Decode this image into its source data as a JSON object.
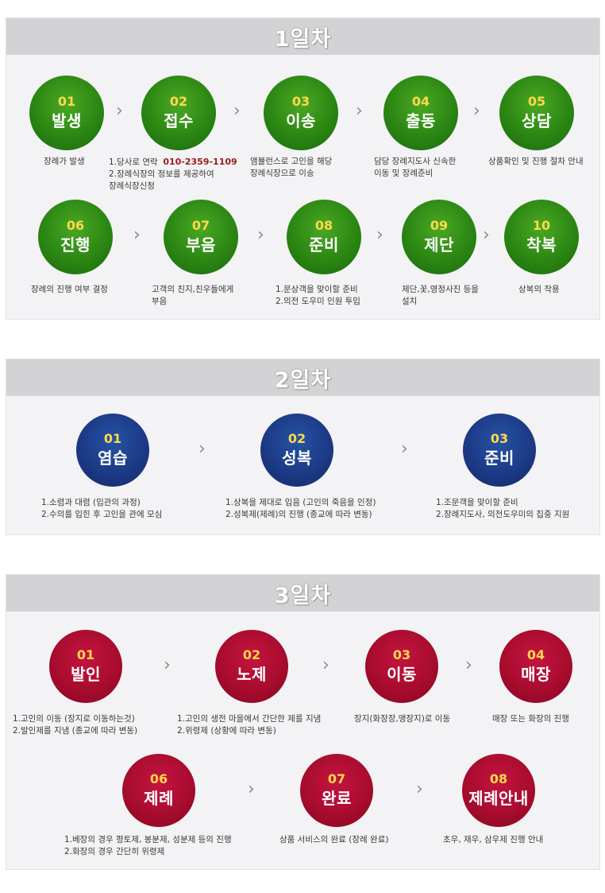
{
  "day1": {
    "title": "1일차",
    "steps": [
      {
        "num": "01",
        "name": "발생",
        "desc": [
          "장례가 발생"
        ]
      },
      {
        "num": "02",
        "name": "접수",
        "desc_prefix": "1.당사로 연락",
        "phone": "010-2359-1109",
        "desc": [
          "2.장례식장의 정보를 제공하여",
          "장례식장신청"
        ]
      },
      {
        "num": "03",
        "name": "이송",
        "desc": [
          "앰뷸런스로 고인을 해당",
          "장례식장으로 이송"
        ]
      },
      {
        "num": "04",
        "name": "출동",
        "desc": [
          "담당 장례지도사 신속한",
          "이동 및 장례준비"
        ]
      },
      {
        "num": "05",
        "name": "상담",
        "desc": [
          "상품확인 및 진행 절차 안내"
        ]
      },
      {
        "num": "06",
        "name": "진행",
        "desc": [
          "장례의 진행 여부 결정"
        ]
      },
      {
        "num": "07",
        "name": "부음",
        "desc": [
          "고객의 친지,친우들에게",
          "부음"
        ]
      },
      {
        "num": "08",
        "name": "준비",
        "desc": [
          "1.문상객을 맞이할 준비",
          "2.의전 도우미 인원 투입"
        ]
      },
      {
        "num": "09",
        "name": "제단",
        "desc": [
          "제단,꽃,영정사진 등을",
          "설치"
        ]
      },
      {
        "num": "10",
        "name": "착복",
        "desc": [
          "상복의 착용"
        ]
      }
    ]
  },
  "day2": {
    "title": "2일차",
    "steps": [
      {
        "num": "01",
        "name": "염습",
        "desc": [
          "1.소렴과 대렴 (입관의 과정)",
          "2.수의를 입힌 후 고인을 관에 모심"
        ]
      },
      {
        "num": "02",
        "name": "성복",
        "desc": [
          "1.상복을 제대로 입음  (고인의 죽음을 인정)",
          "2.성복제(제례)의 진행  (종교에 따라 변동)"
        ]
      },
      {
        "num": "03",
        "name": "준비",
        "desc": [
          "1.조문객을 맞이할 준비",
          "2.장례지도사, 의전도우미의 집중 지원"
        ]
      }
    ]
  },
  "day3": {
    "title": "3일차",
    "steps": [
      {
        "num": "01",
        "name": "발인",
        "desc": [
          "1.고인의 이동 (장지로 이동하는것)",
          "2.발인제를 지냄 (종교에 따라 변동)"
        ]
      },
      {
        "num": "02",
        "name": "노제",
        "desc": [
          "1.고인의 생전 마을에서 간단한 제를 지냄",
          "2.위령제 (상황에 따라 변동)"
        ]
      },
      {
        "num": "03",
        "name": "이동",
        "desc": [
          "장지(화장장,맹장지)로 이동"
        ]
      },
      {
        "num": "04",
        "name": "매장",
        "desc": [
          "매장 또는 화장의 진행"
        ]
      },
      {
        "num": "06",
        "name": "제례",
        "desc": [
          "1.베장의 경우 평토제, 봉분제, 성분제 등의 진행",
          "2.화장의 경우 간단히 위령제"
        ]
      },
      {
        "num": "07",
        "name": "완료",
        "desc": [
          "상품 서비스의 완료 (장례 완료)"
        ]
      },
      {
        "num": "08",
        "name": "제례안내",
        "desc": [
          "초우, 재우, 삼우제 진행 안내"
        ]
      }
    ]
  },
  "arrow_glyph": "›",
  "colors": {
    "green": "#2b8613",
    "blue": "#1c3a86",
    "red": "#a80c2e",
    "number": "#ffd84a",
    "phone": "#9b1b1b"
  }
}
